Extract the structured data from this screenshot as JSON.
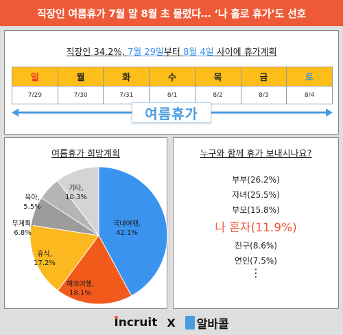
{
  "header": {
    "title": "직장인 여름휴가 7월 말 8월 초 몰렸다… ‘나 홀로 휴가’도 선호"
  },
  "top": {
    "title_pre": "직장인 34.2%, ",
    "title_date1": "7월 29일",
    "title_mid": "부터 ",
    "title_date2": "8월 4일",
    "title_post": " 사이에 휴가계획",
    "vacation_label": "여름휴가",
    "days": [
      {
        "day": "일",
        "date": "7/29",
        "color": "#e8322b"
      },
      {
        "day": "월",
        "date": "7/30",
        "color": "#222222"
      },
      {
        "day": "화",
        "date": "7/31",
        "color": "#222222"
      },
      {
        "day": "수",
        "date": "8/1",
        "color": "#222222"
      },
      {
        "day": "목",
        "date": "8/2",
        "color": "#222222"
      },
      {
        "day": "금",
        "date": "8/3",
        "color": "#222222"
      },
      {
        "day": "토",
        "date": "8/4",
        "color": "#2f8fe0"
      }
    ]
  },
  "left": {
    "title": "여름휴가 희망계획"
  },
  "right": {
    "title": "누구와 함께 휴가 보내시나요?",
    "items": [
      "부부(26.2%)",
      "자녀(25.5%)",
      "부모(15.8%)"
    ],
    "highlight": "나 혼자(11.9%)",
    "items2": [
      "친구(8.6%)",
      "연인(7.5%)"
    ],
    "more": "⋮"
  },
  "footer": {
    "brand1": "Incruit",
    "x": "X",
    "brand2": "알바콜"
  },
  "chart_data": {
    "type": "pie",
    "title": "여름휴가 희망계획",
    "slices": [
      {
        "label": "국내여행",
        "value": 42.1,
        "color": "#3a93ef"
      },
      {
        "label": "해외여행",
        "value": 18.1,
        "color": "#f25a1c"
      },
      {
        "label": "휴식",
        "value": 17.2,
        "color": "#fbb91f"
      },
      {
        "label": "무계획",
        "value": 6.8,
        "color": "#9c9c9c"
      },
      {
        "label": "육아",
        "value": 5.5,
        "color": "#b5b5b5"
      },
      {
        "label": "기타",
        "value": 10.3,
        "color": "#d4d4d4"
      }
    ]
  }
}
